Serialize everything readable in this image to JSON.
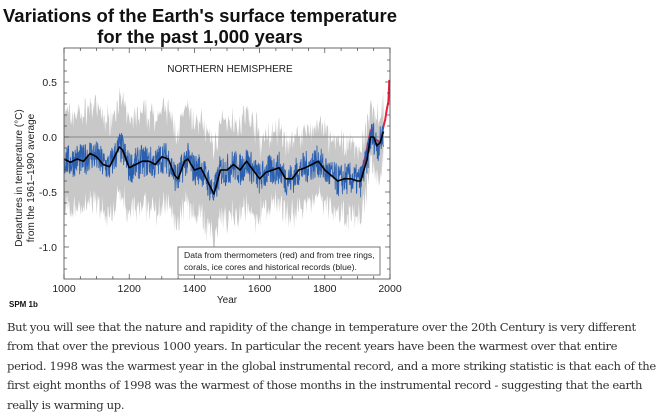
{
  "chart_data": {
    "type": "line",
    "title": "Variations of the Earth's surface temperature",
    "subtitle": "for the past 1,000 years",
    "panel_label": "NORTHERN HEMISPHERE",
    "figure_label": "SPM 1b",
    "xlabel": "Year",
    "ylabel_line1": "Departures in temperature (°C)",
    "ylabel_line2": "from the 1961–1990 average",
    "xlim": [
      1000,
      2000
    ],
    "ylim": [
      -1.3,
      0.8
    ],
    "x_ticks": [
      "1000",
      "1200",
      "1400",
      "1600",
      "1800",
      "2000"
    ],
    "y_ticks": [
      "0.5",
      "0.0",
      "-0.5",
      "-1.0"
    ],
    "annotation_line1": "Data from thermometers (red) and from tree rings,",
    "annotation_line2": "corals, ice cores and historical records (blue).",
    "reference_line": 0.0,
    "grid": false,
    "series": [
      {
        "role": "smoothed proxy (black)",
        "color": "#000000",
        "x": [
          1000,
          1020,
          1040,
          1060,
          1080,
          1100,
          1120,
          1140,
          1160,
          1170,
          1180,
          1200,
          1220,
          1240,
          1260,
          1280,
          1300,
          1320,
          1340,
          1350,
          1370,
          1380,
          1400,
          1420,
          1440,
          1460,
          1480,
          1500,
          1520,
          1540,
          1560,
          1580,
          1600,
          1620,
          1640,
          1660,
          1680,
          1700,
          1720,
          1740,
          1760,
          1780,
          1800,
          1820,
          1840,
          1860,
          1880,
          1900,
          1910,
          1930,
          1940,
          1950,
          1960,
          1970,
          1980
        ],
        "y": [
          -0.2,
          -0.23,
          -0.2,
          -0.22,
          -0.15,
          -0.18,
          -0.25,
          -0.27,
          -0.15,
          -0.09,
          -0.12,
          -0.28,
          -0.25,
          -0.22,
          -0.22,
          -0.25,
          -0.18,
          -0.2,
          -0.35,
          -0.38,
          -0.22,
          -0.2,
          -0.3,
          -0.28,
          -0.4,
          -0.52,
          -0.3,
          -0.3,
          -0.25,
          -0.3,
          -0.22,
          -0.3,
          -0.38,
          -0.32,
          -0.3,
          -0.28,
          -0.38,
          -0.38,
          -0.3,
          -0.28,
          -0.25,
          -0.22,
          -0.3,
          -0.35,
          -0.4,
          -0.38,
          -0.38,
          -0.4,
          -0.4,
          -0.2,
          0.0,
          0.0,
          -0.08,
          -0.05,
          0.05
        ]
      },
      {
        "role": "annual proxy (blue)",
        "color": "#2a5fb0"
      },
      {
        "role": "thermometer record (red)",
        "color": "#e8203a",
        "x": [
          1902,
          1910,
          1920,
          1930,
          1940,
          1950,
          1960,
          1970,
          1980,
          1985,
          1990,
          1995,
          1998
        ],
        "y": [
          -0.4,
          -0.42,
          -0.3,
          -0.15,
          0.02,
          -0.05,
          -0.05,
          -0.1,
          0.1,
          0.1,
          0.3,
          0.35,
          0.55
        ]
      },
      {
        "role": "uncertainty band (grey)",
        "color": "#c8c8c8",
        "half_width_before_1600": 0.35,
        "half_width_after_1600": 0.25
      }
    ]
  },
  "paragraph": "But you will see that the nature and rapidity of the change in temperature over the 20th Century is very different from that over the previous 1000 years. In particular the recent years have been the warmest over that entire period. 1998 was the warmest year in the global instrumental record, and a more striking statistic is that each of the first eight months of 1998 was the warmest of those months in the instrumental record - suggesting that the earth really is warming up."
}
